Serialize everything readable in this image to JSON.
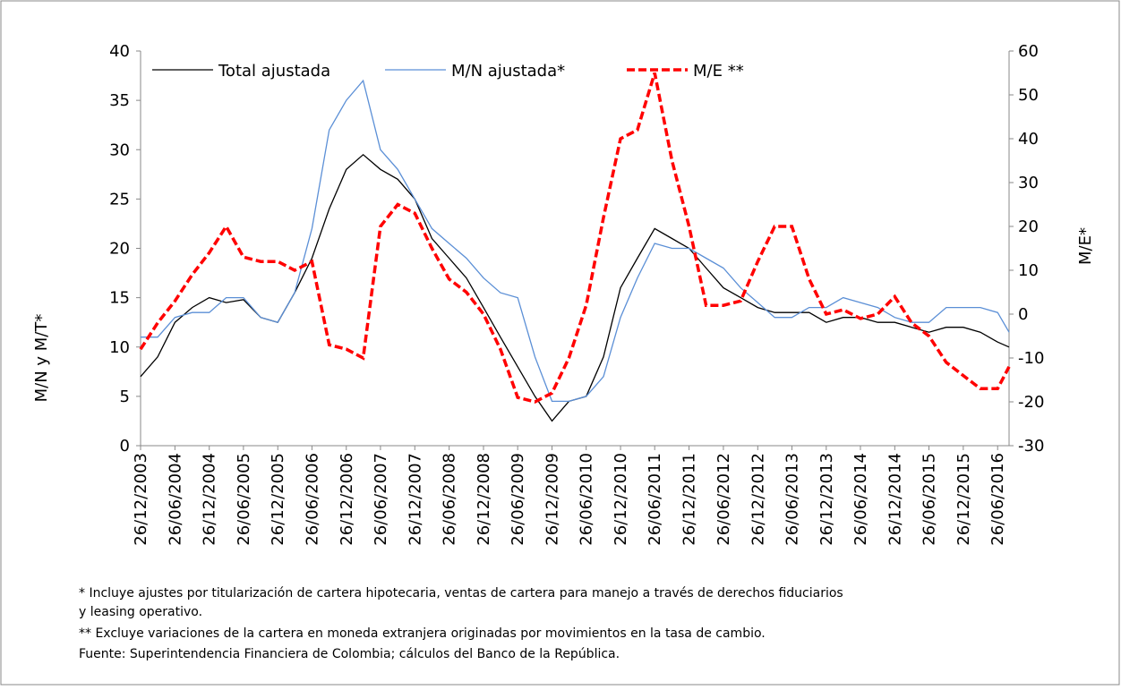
{
  "chart_data": {
    "type": "line",
    "x": [
      "26/12/2003",
      "26/03/2004",
      "26/06/2004",
      "26/09/2004",
      "26/12/2004",
      "26/03/2005",
      "26/06/2005",
      "26/09/2005",
      "26/12/2005",
      "26/03/2006",
      "26/06/2006",
      "26/09/2006",
      "26/12/2006",
      "26/03/2007",
      "26/06/2007",
      "26/09/2007",
      "26/12/2007",
      "26/03/2008",
      "26/06/2008",
      "26/09/2008",
      "26/12/2008",
      "26/03/2009",
      "26/06/2009",
      "26/09/2009",
      "26/12/2009",
      "26/03/2010",
      "26/06/2010",
      "26/09/2010",
      "26/12/2010",
      "26/03/2011",
      "26/06/2011",
      "26/09/2011",
      "26/12/2011",
      "26/03/2012",
      "26/06/2012",
      "26/09/2012",
      "26/12/2012",
      "26/03/2013",
      "26/06/2013",
      "26/09/2013",
      "26/12/2013",
      "26/03/2014",
      "26/06/2014",
      "26/09/2014",
      "26/12/2014",
      "26/03/2015",
      "26/06/2015",
      "26/09/2015",
      "26/12/2015",
      "26/03/2016",
      "26/06/2016",
      "26/08/2016"
    ],
    "series": [
      {
        "name": "Total ajustada",
        "color": "#000000",
        "dash": false,
        "values": [
          7,
          9,
          12.5,
          14,
          15,
          14.5,
          14.8,
          13,
          12.5,
          15.5,
          19,
          24,
          28,
          29.5,
          28,
          27,
          25,
          21,
          19,
          17,
          14,
          11,
          8,
          5,
          2.5,
          4.5,
          5,
          9,
          16,
          19,
          22,
          21,
          20,
          18,
          16,
          15,
          14,
          13.5,
          13.5,
          13.5,
          12.5,
          13,
          13,
          12.5,
          12.5,
          12,
          11.5,
          12,
          12,
          11.5,
          10.5,
          10
        ]
      },
      {
        "name": "M/N ajustada*",
        "color": "#5b8fd6",
        "dash": false,
        "values": [
          11,
          11,
          13,
          13.5,
          13.5,
          15,
          15,
          13,
          12.5,
          15.5,
          22,
          32,
          35,
          37,
          30,
          28,
          25,
          22,
          20.5,
          19,
          17,
          15.5,
          15,
          9,
          4.5,
          4.5,
          5,
          7,
          13,
          17,
          20.5,
          20,
          20,
          19,
          18,
          16,
          14.5,
          13,
          13,
          14,
          14,
          15,
          14.5,
          14,
          13,
          12.5,
          12.5,
          14,
          14,
          14,
          13.5,
          11.5
        ]
      },
      {
        "name": "M/E **",
        "color": "#ff0000",
        "dash": true,
        "axis": "y2",
        "values": [
          -8,
          -2,
          3,
          9,
          14,
          20,
          13,
          12,
          12,
          10,
          12,
          -7,
          -8,
          -10,
          20,
          25,
          23,
          15,
          8,
          5,
          0,
          -8,
          -19,
          -20,
          -18,
          -10,
          2,
          22,
          40,
          42,
          55,
          35,
          20,
          2,
          2,
          3,
          12,
          20,
          20,
          8,
          0,
          1,
          -1,
          0,
          4,
          -2,
          -5,
          -11,
          -14,
          -17,
          -17,
          -12
        ]
      }
    ],
    "xlim": [
      "26/12/2003",
      "26/08/2016"
    ],
    "xticks": [
      "26/12/2003",
      "26/06/2004",
      "26/12/2004",
      "26/06/2005",
      "26/12/2005",
      "26/06/2006",
      "26/12/2006",
      "26/06/2007",
      "26/12/2007",
      "26/06/2008",
      "26/12/2008",
      "26/06/2009",
      "26/12/2009",
      "26/06/2010",
      "26/12/2010",
      "26/06/2011",
      "26/12/2011",
      "26/06/2012",
      "26/12/2012",
      "26/06/2013",
      "26/12/2013",
      "26/06/2014",
      "26/12/2014",
      "26/06/2015",
      "26/12/2015",
      "26/06/2016"
    ],
    "ylim": [
      0,
      40
    ],
    "yticks": [
      0,
      5,
      10,
      15,
      20,
      25,
      30,
      35,
      40
    ],
    "y2lim": [
      -30,
      60
    ],
    "y2ticks": [
      -30,
      -20,
      -10,
      0,
      10,
      20,
      30,
      40,
      50,
      60
    ],
    "ylabel": "M/N y M/T*",
    "y2label": "M/E*",
    "notes": [
      "* Incluye ajustes por titularización de cartera hipotecaria, ventas de cartera para manejo a través de derechos fiduciarios",
      "y leasing operativo.",
      "** Excluye variaciones de la cartera en moneda extranjera originadas por movimientos en la tasa de cambio.",
      "Fuente: Superintendencia Financiera de Colombia; cálculos del Banco de la República."
    ]
  }
}
